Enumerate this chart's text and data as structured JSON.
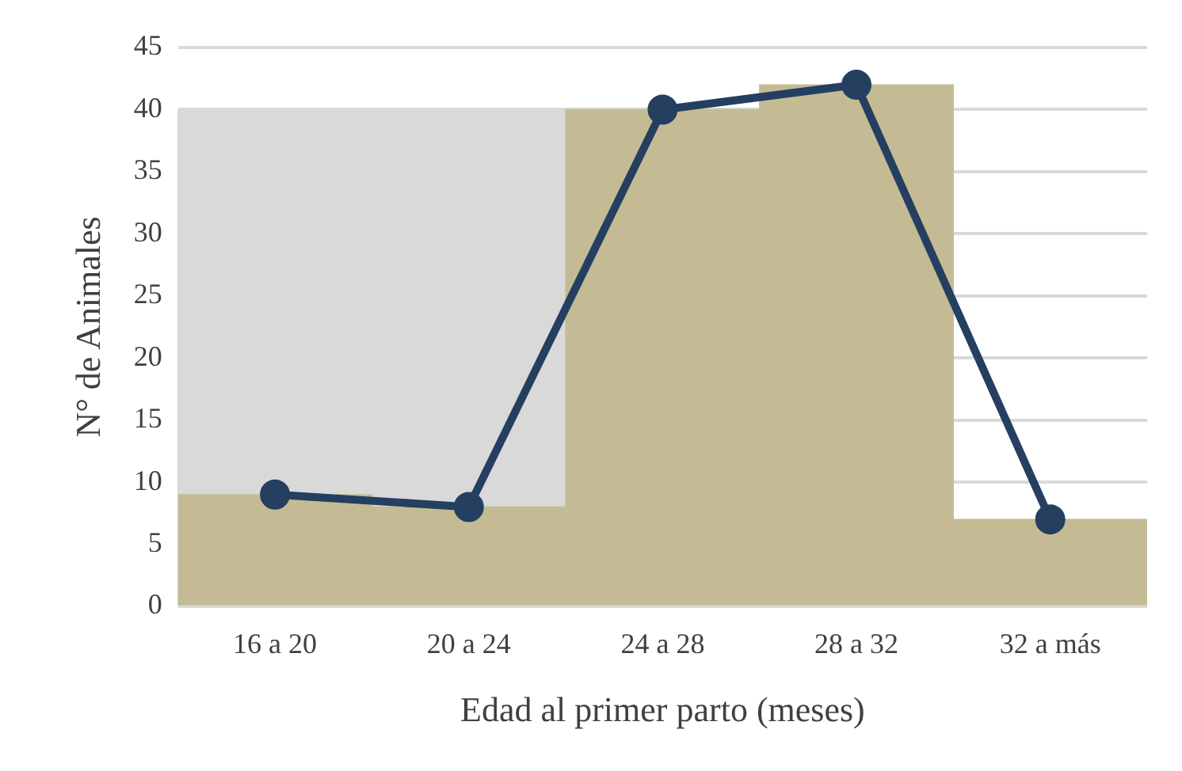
{
  "chart_data": {
    "type": "bar",
    "xlabel": "Edad al primer parto (meses)",
    "ylabel": "N° de Animales",
    "categories": [
      "16 a 20",
      "20 a 24",
      "24 a 28",
      "28 a 32",
      "32 a más"
    ],
    "series": [
      {
        "color": "#c4bb94",
        "values": [
          9,
          8,
          40,
          42,
          7
        ]
      },
      {
        "type": "line",
        "color": "#243f60",
        "values": [
          9,
          8,
          40,
          42,
          7
        ]
      }
    ],
    "ylim": [
      0,
      45
    ],
    "yticks": [
      0,
      5,
      10,
      15,
      20,
      25,
      30,
      35,
      40,
      45
    ],
    "grid": "y",
    "legend": false,
    "marker": "circle",
    "line_style": "solid"
  }
}
